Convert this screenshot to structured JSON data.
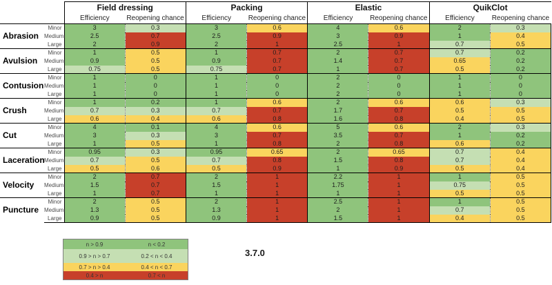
{
  "version": "3.7.0",
  "colors": {
    "g": "#8fc47c",
    "lg": "#c5dfb3",
    "y": "#fad45e",
    "r": "#c7402a"
  },
  "table": {
    "treatments": [
      "Field dressing",
      "Packing",
      "Elastic",
      "QuikClot"
    ],
    "subcolumns": [
      "Efficiency",
      "Reopening chance"
    ],
    "severities": [
      "Minor",
      "Medium",
      "Large"
    ],
    "wounds": [
      {
        "name": "Abrasion",
        "rows": [
          {
            "severity": "Minor",
            "cells": [
              [
                "3",
                "g"
              ],
              [
                "0.3",
                "lg"
              ],
              [
                "3",
                "g"
              ],
              [
                "0.6",
                "y"
              ],
              [
                "4",
                "g"
              ],
              [
                "0.6",
                "y"
              ],
              [
                "2",
                "g"
              ],
              [
                "0.3",
                "lg"
              ]
            ]
          },
          {
            "severity": "Medium",
            "cells": [
              [
                "2.5",
                "g"
              ],
              [
                "0.7",
                "r"
              ],
              [
                "2.5",
                "g"
              ],
              [
                "0.9",
                "r"
              ],
              [
                "3",
                "g"
              ],
              [
                "0.9",
                "r"
              ],
              [
                "1",
                "g"
              ],
              [
                "0.4",
                "y"
              ]
            ]
          },
          {
            "severity": "Large",
            "cells": [
              [
                "2",
                "g"
              ],
              [
                "0.9",
                "r"
              ],
              [
                "2",
                "g"
              ],
              [
                "1",
                "r"
              ],
              [
                "2.5",
                "g"
              ],
              [
                "1",
                "r"
              ],
              [
                "0.7",
                "lg"
              ],
              [
                "0.5",
                "y"
              ]
            ]
          }
        ]
      },
      {
        "name": "Avulsion",
        "rows": [
          {
            "severity": "Minor",
            "cells": [
              [
                "1",
                "g"
              ],
              [
                "0.5",
                "y"
              ],
              [
                "1",
                "g"
              ],
              [
                "0.7",
                "r"
              ],
              [
                "2",
                "g"
              ],
              [
                "0.7",
                "r"
              ],
              [
                "0.7",
                "lg"
              ],
              [
                "0.2",
                "g"
              ]
            ]
          },
          {
            "severity": "Medium",
            "cells": [
              [
                "0.9",
                "g"
              ],
              [
                "0.5",
                "y"
              ],
              [
                "0.9",
                "g"
              ],
              [
                "0.7",
                "r"
              ],
              [
                "1.4",
                "g"
              ],
              [
                "0.7",
                "r"
              ],
              [
                "0.65",
                "y"
              ],
              [
                "0.2",
                "g"
              ]
            ]
          },
          {
            "severity": "Large",
            "cells": [
              [
                "0.75",
                "lg"
              ],
              [
                "0.5",
                "y"
              ],
              [
                "0.75",
                "lg"
              ],
              [
                "0.7",
                "r"
              ],
              [
                "1",
                "g"
              ],
              [
                "0.7",
                "r"
              ],
              [
                "0.5",
                "y"
              ],
              [
                "0.2",
                "g"
              ]
            ]
          }
        ]
      },
      {
        "name": "Contusion",
        "rows": [
          {
            "severity": "Minor",
            "cells": [
              [
                "1",
                "g"
              ],
              [
                "0",
                "g"
              ],
              [
                "1",
                "g"
              ],
              [
                "0",
                "g"
              ],
              [
                "2",
                "g"
              ],
              [
                "0",
                "g"
              ],
              [
                "1",
                "g"
              ],
              [
                "0",
                "g"
              ]
            ]
          },
          {
            "severity": "Medium",
            "cells": [
              [
                "1",
                "g"
              ],
              [
                "0",
                "g"
              ],
              [
                "1",
                "g"
              ],
              [
                "0",
                "g"
              ],
              [
                "2",
                "g"
              ],
              [
                "0",
                "g"
              ],
              [
                "1",
                "g"
              ],
              [
                "0",
                "g"
              ]
            ]
          },
          {
            "severity": "Large",
            "cells": [
              [
                "1",
                "g"
              ],
              [
                "0",
                "g"
              ],
              [
                "1",
                "g"
              ],
              [
                "0",
                "g"
              ],
              [
                "2",
                "g"
              ],
              [
                "0",
                "g"
              ],
              [
                "1",
                "g"
              ],
              [
                "0",
                "g"
              ]
            ]
          }
        ]
      },
      {
        "name": "Crush",
        "rows": [
          {
            "severity": "Minor",
            "cells": [
              [
                "1",
                "g"
              ],
              [
                "0.2",
                "g"
              ],
              [
                "1",
                "g"
              ],
              [
                "0.6",
                "y"
              ],
              [
                "2",
                "g"
              ],
              [
                "0.6",
                "y"
              ],
              [
                "0.6",
                "y"
              ],
              [
                "0.3",
                "lg"
              ]
            ]
          },
          {
            "severity": "Medium",
            "cells": [
              [
                "0.7",
                "lg"
              ],
              [
                "0.3",
                "lg"
              ],
              [
                "0.7",
                "lg"
              ],
              [
                "0.7",
                "r"
              ],
              [
                "1.7",
                "g"
              ],
              [
                "0.7",
                "r"
              ],
              [
                "0.5",
                "y"
              ],
              [
                "0.5",
                "y"
              ]
            ]
          },
          {
            "severity": "Large",
            "cells": [
              [
                "0.6",
                "y"
              ],
              [
                "0.4",
                "y"
              ],
              [
                "0.6",
                "y"
              ],
              [
                "0.8",
                "r"
              ],
              [
                "1.6",
                "g"
              ],
              [
                "0.8",
                "r"
              ],
              [
                "0.4",
                "y"
              ],
              [
                "0.5",
                "y"
              ]
            ]
          }
        ]
      },
      {
        "name": "Cut",
        "rows": [
          {
            "severity": "Minor",
            "cells": [
              [
                "4",
                "g"
              ],
              [
                "0.1",
                "g"
              ],
              [
                "4",
                "g"
              ],
              [
                "0.6",
                "y"
              ],
              [
                "5",
                "g"
              ],
              [
                "0.6",
                "y"
              ],
              [
                "2",
                "g"
              ],
              [
                "0.3",
                "lg"
              ]
            ]
          },
          {
            "severity": "Medium",
            "cells": [
              [
                "3",
                "g"
              ],
              [
                "0.3",
                "lg"
              ],
              [
                "3",
                "g"
              ],
              [
                "0.7",
                "r"
              ],
              [
                "3.5",
                "g"
              ],
              [
                "0.7",
                "r"
              ],
              [
                "1",
                "g"
              ],
              [
                "0.2",
                "g"
              ]
            ]
          },
          {
            "severity": "Large",
            "cells": [
              [
                "1",
                "g"
              ],
              [
                "0.5",
                "y"
              ],
              [
                "1",
                "g"
              ],
              [
                "0.8",
                "r"
              ],
              [
                "2",
                "g"
              ],
              [
                "0.8",
                "r"
              ],
              [
                "0.6",
                "y"
              ],
              [
                "0.2",
                "g"
              ]
            ]
          }
        ]
      },
      {
        "name": "Laceration",
        "rows": [
          {
            "severity": "Minor",
            "cells": [
              [
                "0.95",
                "g"
              ],
              [
                "0.3",
                "lg"
              ],
              [
                "0.95",
                "g"
              ],
              [
                "0.65",
                "y"
              ],
              [
                "2",
                "g"
              ],
              [
                "0.65",
                "y"
              ],
              [
                "0.7",
                "lg"
              ],
              [
                "0.4",
                "y"
              ]
            ]
          },
          {
            "severity": "Medium",
            "cells": [
              [
                "0.7",
                "lg"
              ],
              [
                "0.5",
                "y"
              ],
              [
                "0.7",
                "lg"
              ],
              [
                "0.8",
                "r"
              ],
              [
                "1.5",
                "g"
              ],
              [
                "0.8",
                "r"
              ],
              [
                "0.7",
                "lg"
              ],
              [
                "0.4",
                "y"
              ]
            ]
          },
          {
            "severity": "Large",
            "cells": [
              [
                "0.5",
                "y"
              ],
              [
                "0.6",
                "y"
              ],
              [
                "0.5",
                "y"
              ],
              [
                "0.9",
                "r"
              ],
              [
                "1",
                "g"
              ],
              [
                "0.9",
                "r"
              ],
              [
                "0.5",
                "y"
              ],
              [
                "0.4",
                "y"
              ]
            ]
          }
        ]
      },
      {
        "name": "Velocity",
        "rows": [
          {
            "severity": "Minor",
            "cells": [
              [
                "2",
                "g"
              ],
              [
                "0.7",
                "r"
              ],
              [
                "2",
                "g"
              ],
              [
                "1",
                "r"
              ],
              [
                "2.2",
                "g"
              ],
              [
                "1",
                "r"
              ],
              [
                "1",
                "g"
              ],
              [
                "0.5",
                "y"
              ]
            ]
          },
          {
            "severity": "Medium",
            "cells": [
              [
                "1.5",
                "g"
              ],
              [
                "0.7",
                "r"
              ],
              [
                "1.5",
                "g"
              ],
              [
                "1",
                "r"
              ],
              [
                "1.75",
                "g"
              ],
              [
                "1",
                "r"
              ],
              [
                "0.75",
                "lg"
              ],
              [
                "0.5",
                "y"
              ]
            ]
          },
          {
            "severity": "Large",
            "cells": [
              [
                "1",
                "g"
              ],
              [
                "0.7",
                "r"
              ],
              [
                "1",
                "g"
              ],
              [
                "1",
                "r"
              ],
              [
                "1",
                "g"
              ],
              [
                "1",
                "r"
              ],
              [
                "0.5",
                "y"
              ],
              [
                "0.5",
                "y"
              ]
            ]
          }
        ]
      },
      {
        "name": "Puncture",
        "rows": [
          {
            "severity": "Minor",
            "cells": [
              [
                "2",
                "g"
              ],
              [
                "0.5",
                "y"
              ],
              [
                "2",
                "g"
              ],
              [
                "1",
                "r"
              ],
              [
                "2.5",
                "g"
              ],
              [
                "1",
                "r"
              ],
              [
                "1",
                "g"
              ],
              [
                "0.5",
                "y"
              ]
            ]
          },
          {
            "severity": "Medium",
            "cells": [
              [
                "1.3",
                "g"
              ],
              [
                "0.5",
                "y"
              ],
              [
                "1.3",
                "g"
              ],
              [
                "1",
                "r"
              ],
              [
                "2",
                "g"
              ],
              [
                "1",
                "r"
              ],
              [
                "0.7",
                "lg"
              ],
              [
                "0.5",
                "y"
              ]
            ]
          },
          {
            "severity": "Large",
            "cells": [
              [
                "0.9",
                "g"
              ],
              [
                "0.5",
                "y"
              ],
              [
                "0.9",
                "g"
              ],
              [
                "1",
                "r"
              ],
              [
                "1.5",
                "g"
              ],
              [
                "1",
                "r"
              ],
              [
                "0.4",
                "y"
              ],
              [
                "0.5",
                "y"
              ]
            ]
          }
        ]
      }
    ]
  },
  "legend": {
    "rows": [
      {
        "efficiency_label": "n > 0.9",
        "reopening_label": "n < 0.2",
        "c": "g"
      },
      {
        "efficiency_label": "0.9 > n > 0.7",
        "reopening_label": "0.2 < n < 0.4",
        "c": "lg"
      },
      {
        "efficiency_label": "0.7 > n > 0.4",
        "reopening_label": "0.4 < n < 0.7",
        "c": "y"
      },
      {
        "efficiency_label": "0.4 > n",
        "reopening_label": "0.7 < n",
        "c": "r"
      }
    ]
  }
}
